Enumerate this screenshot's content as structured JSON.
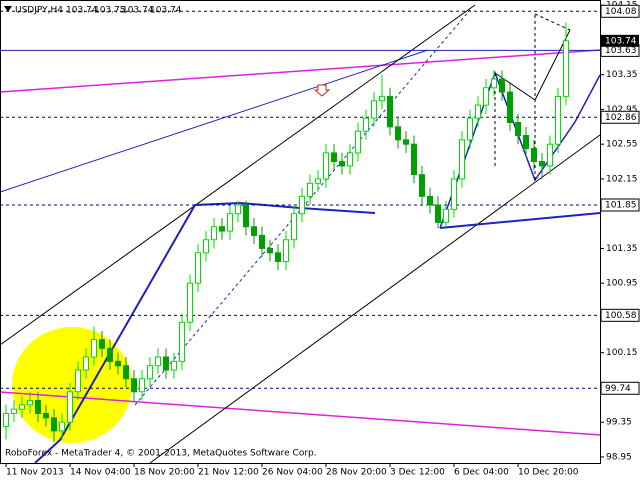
{
  "chart_data": {
    "type": "candlestick",
    "header": {
      "symbol": "USDJPY,H4",
      "quote": [
        103.74,
        103.75,
        103.74,
        103.74
      ]
    },
    "footer": "RoboForex - MetaTrader 4, © 2001-2013, MetaQuotes Software Corp.",
    "categories": [
      "11 Nov 2013",
      null,
      null,
      null,
      null,
      null,
      null,
      null,
      "14 Nov 04:00",
      null,
      null,
      null,
      null,
      null,
      null,
      null,
      "18 Nov 20:00",
      null,
      null,
      null,
      null,
      null,
      null,
      null,
      "21 Nov 12:00",
      null,
      null,
      null,
      null,
      null,
      null,
      null,
      "26 Nov 04:00",
      null,
      null,
      null,
      null,
      null,
      null,
      null,
      "28 Nov 20:00",
      null,
      null,
      null,
      null,
      null,
      null,
      null,
      "3 Dec 12:00",
      null,
      null,
      null,
      null,
      null,
      null,
      null,
      "6 Dec 04:00",
      null,
      null,
      null,
      null,
      null,
      null,
      null,
      "10 Dec 20:00",
      null,
      null,
      null,
      null,
      null,
      null
    ],
    "open": [
      99.3,
      99.45,
      99.5,
      99.55,
      99.6,
      99.45,
      99.4,
      99.25,
      99.35,
      99.7,
      99.95,
      100.1,
      100.3,
      100.2,
      100.05,
      100.0,
      99.85,
      99.7,
      99.85,
      100.0,
      100.1,
      99.95,
      100.05,
      100.5,
      100.95,
      101.3,
      101.45,
      101.6,
      101.55,
      101.75,
      101.85,
      101.6,
      101.5,
      101.35,
      101.3,
      101.2,
      101.45,
      101.75,
      101.95,
      102.1,
      102.15,
      102.45,
      102.35,
      102.3,
      102.45,
      102.7,
      102.85,
      103.05,
      103.1,
      102.75,
      102.6,
      102.55,
      102.2,
      101.95,
      101.85,
      101.65,
      101.8,
      102.15,
      102.6,
      102.85,
      103.0,
      103.2,
      103.3,
      103.15,
      102.8,
      102.65,
      102.5,
      102.35,
      102.3,
      102.55,
      103.1
    ],
    "high": [
      99.55,
      99.6,
      99.65,
      99.7,
      99.7,
      99.55,
      99.5,
      99.45,
      99.8,
      100.05,
      100.2,
      100.45,
      100.4,
      100.3,
      100.15,
      100.1,
      99.95,
      99.95,
      100.1,
      100.2,
      100.2,
      100.15,
      100.6,
      101.05,
      101.4,
      101.55,
      101.7,
      101.7,
      101.85,
      101.9,
      101.9,
      101.7,
      101.6,
      101.45,
      101.4,
      101.55,
      101.85,
      102.05,
      102.2,
      102.25,
      102.55,
      102.55,
      102.45,
      102.55,
      102.8,
      102.95,
      103.15,
      103.35,
      103.2,
      102.85,
      102.7,
      102.65,
      102.3,
      102.05,
      101.95,
      101.9,
      102.25,
      102.7,
      102.95,
      103.1,
      103.3,
      103.4,
      103.4,
      103.25,
      102.9,
      102.75,
      102.6,
      102.45,
      102.65,
      103.2,
      103.95
    ],
    "low": [
      99.15,
      99.35,
      99.4,
      99.45,
      99.35,
      99.3,
      99.12,
      99.15,
      99.25,
      99.6,
      99.85,
      100.0,
      100.1,
      99.95,
      99.9,
      99.75,
      99.58,
      99.6,
      99.75,
      99.9,
      99.85,
      99.85,
      99.95,
      100.4,
      100.85,
      101.2,
      101.35,
      101.45,
      101.45,
      101.65,
      101.5,
      101.4,
      101.25,
      101.2,
      101.1,
      101.1,
      101.35,
      101.65,
      101.85,
      102.0,
      102.05,
      102.25,
      102.2,
      102.2,
      102.35,
      102.6,
      102.75,
      102.95,
      102.65,
      102.5,
      102.45,
      102.1,
      101.85,
      101.75,
      101.58,
      101.6,
      101.7,
      102.05,
      102.5,
      102.75,
      102.9,
      103.1,
      103.05,
      102.7,
      102.55,
      102.4,
      102.25,
      102.15,
      102.2,
      102.45,
      103.0
    ],
    "close": [
      99.45,
      99.5,
      99.55,
      99.6,
      99.45,
      99.4,
      99.25,
      99.35,
      99.7,
      99.95,
      100.1,
      100.3,
      100.2,
      100.05,
      100.0,
      99.85,
      99.7,
      99.85,
      100.0,
      100.1,
      99.95,
      100.05,
      100.5,
      100.95,
      101.3,
      101.45,
      101.6,
      101.55,
      101.75,
      101.85,
      101.6,
      101.5,
      101.35,
      101.3,
      101.2,
      101.45,
      101.75,
      101.95,
      102.1,
      102.15,
      102.45,
      102.35,
      102.3,
      102.45,
      102.7,
      102.85,
      103.05,
      103.1,
      102.75,
      102.6,
      102.55,
      102.2,
      101.95,
      101.85,
      101.65,
      101.8,
      102.15,
      102.6,
      102.85,
      103.0,
      103.2,
      103.3,
      103.15,
      102.8,
      102.65,
      102.5,
      102.35,
      102.3,
      102.55,
      103.1,
      103.74
    ],
    "up_color": "#00e000",
    "down_color": "#00a000",
    "ylim": [
      98.88,
      104.21
    ],
    "yticks": [
      104.15,
      103.35,
      102.95,
      102.55,
      102.15,
      101.35,
      100.95,
      100.15,
      99.35,
      98.95
    ],
    "levels": [
      104.08,
      102.86,
      101.85,
      100.58,
      99.74
    ],
    "level_color": "#000080",
    "support_level": 103.63,
    "support_color": "#2020c0",
    "bid": 103.74
  }
}
